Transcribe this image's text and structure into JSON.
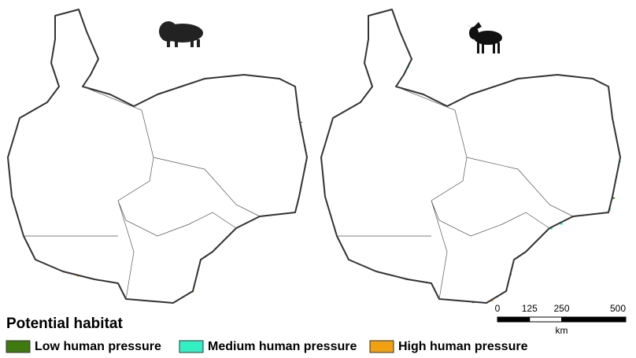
{
  "legend": {
    "title": "Potential habitat",
    "items": [
      {
        "label": "Low human pressure",
        "color": "#3f7a0f"
      },
      {
        "label": "Medium human pressure",
        "color": "#33f0c4"
      },
      {
        "label": "High human pressure",
        "color": "#f0a010"
      }
    ]
  },
  "scale_bar": {
    "ticks": [
      0,
      125,
      250,
      500
    ],
    "unit": "km"
  }
}
